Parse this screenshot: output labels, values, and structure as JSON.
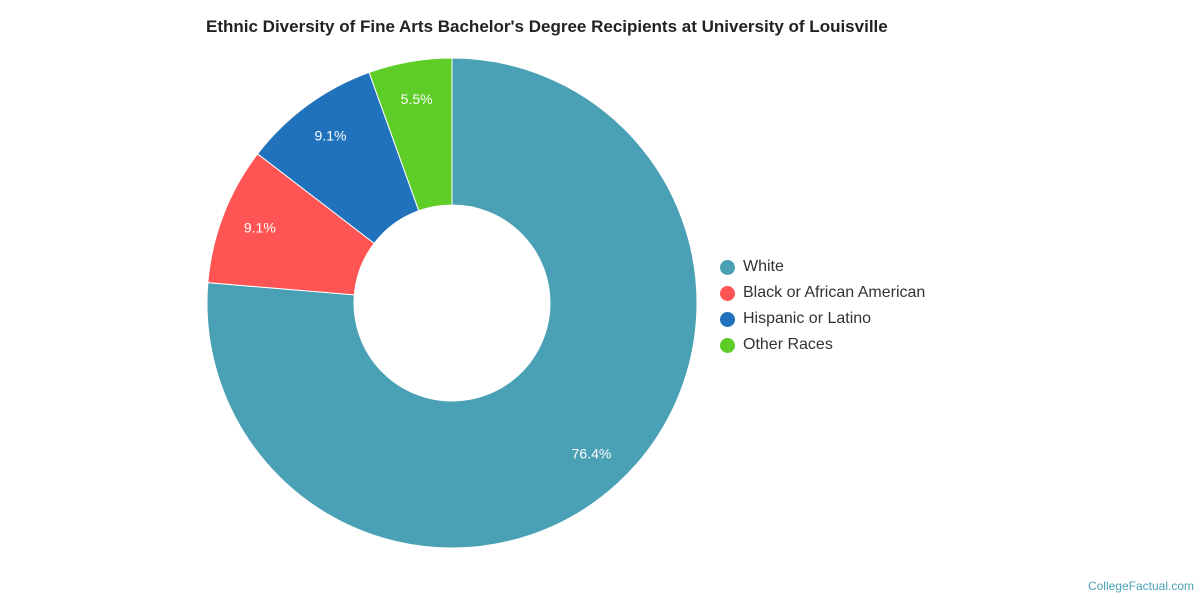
{
  "chart_data": {
    "type": "pie",
    "title": "Ethnic Diversity of Fine Arts Bachelor's Degree Recipients at University of Louisville",
    "donut": true,
    "legend_position": "right",
    "slices": [
      {
        "label": "White",
        "value": 76.4,
        "value_label": "76.4%",
        "color": "#4aa0b5"
      },
      {
        "label": "Black or African American",
        "value": 9.1,
        "value_label": "9.1%",
        "color": "#ff5454"
      },
      {
        "label": "Hispanic or Latino",
        "value": 9.1,
        "value_label": "9.1%",
        "color": "#1f72bb"
      },
      {
        "label": "Other Races",
        "value": 5.5,
        "value_label": "5.5%",
        "color": "#5fcd28"
      }
    ]
  },
  "footer": {
    "credit": "CollegeFactual.com"
  }
}
